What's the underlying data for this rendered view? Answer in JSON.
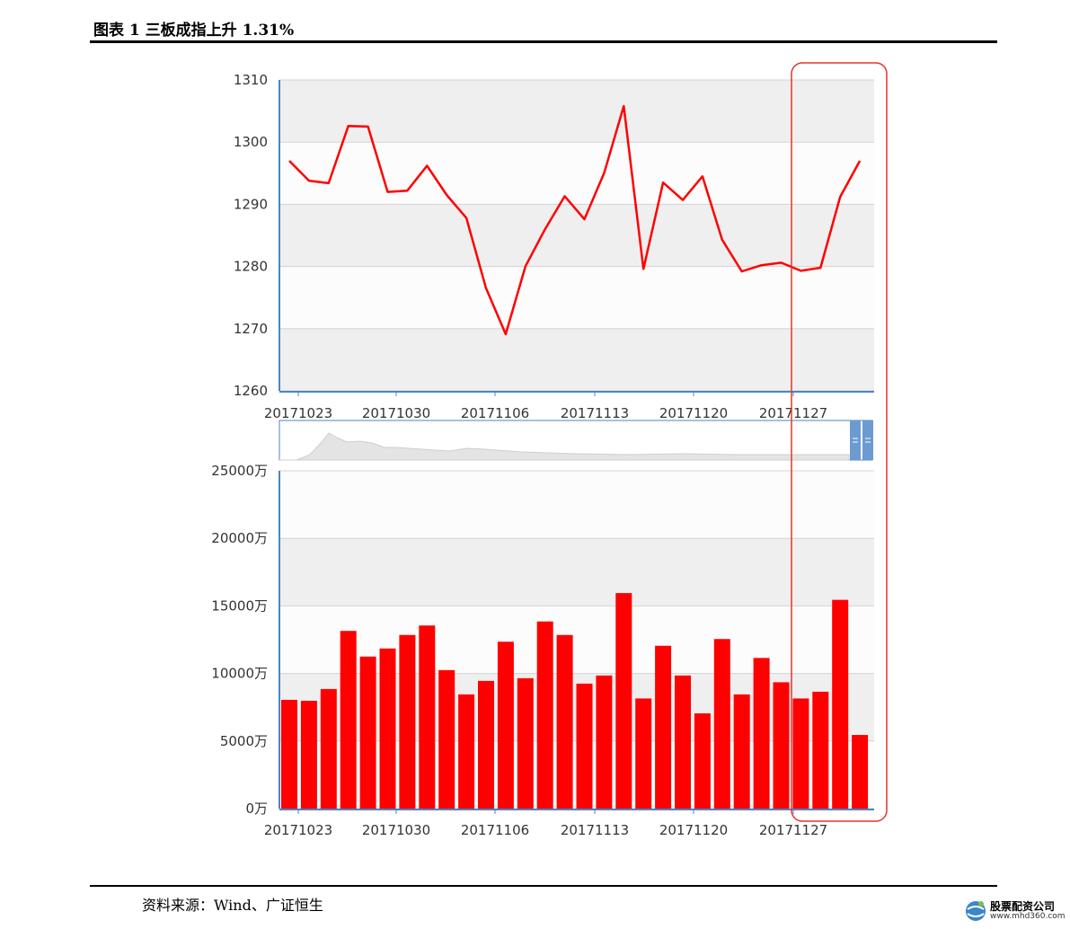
{
  "figure": {
    "title": "图表 1 三板成指上升 1.31%",
    "source": "资料来源：Wind、广证恒生"
  },
  "logo": {
    "name": "股票配资公司",
    "url_text": "www.mhd360.com"
  },
  "colors": {
    "series": "#ff0000",
    "highlight_box": "#e8332a",
    "band_gray": "#efefef",
    "band_white": "#fcfcfc",
    "axis": "#4a86c5",
    "navigator_handle": "#6b9bd1"
  },
  "chart_data": [
    {
      "type": "line",
      "title": "",
      "ylim": [
        1260,
        1310
      ],
      "yticks": [
        "1260",
        "1270",
        "1280",
        "1290",
        "1300",
        "1310"
      ],
      "xticks": [
        "20171023",
        "20171030",
        "20171106",
        "20171113",
        "20171120",
        "20171127"
      ],
      "series": [
        {
          "values": [
            1297.0,
            1293.8,
            1293.4,
            1302.6,
            1302.5,
            1292.0,
            1292.2,
            1296.2,
            1291.5,
            1287.8,
            1276.5,
            1269.1,
            1280.0,
            1286.0,
            1291.3,
            1287.6,
            1295.0,
            1305.8,
            1279.6,
            1293.5,
            1290.7,
            1294.5,
            1284.3,
            1279.2,
            1280.2,
            1280.6,
            1279.3,
            1279.8,
            1291.2,
            1297.0
          ]
        }
      ]
    },
    {
      "type": "bar",
      "title": "",
      "ylim": [
        0,
        25000
      ],
      "yticks": [
        "0万",
        "5000万",
        "10000万",
        "15000万",
        "20000万",
        "25000万"
      ],
      "xticks": [
        "20171023",
        "20171030",
        "20171106",
        "20171113",
        "20171120",
        "20171127"
      ],
      "series": [
        {
          "values": [
            8050,
            7980,
            8850,
            13150,
            11250,
            11850,
            12850,
            13550,
            10250,
            8450,
            9450,
            12350,
            9650,
            13850,
            12850,
            9250,
            9850,
            15950,
            8150,
            12050,
            9850,
            7050,
            12550,
            8450,
            11150,
            9350,
            8150,
            8650,
            15450,
            5450
          ]
        }
      ]
    }
  ]
}
